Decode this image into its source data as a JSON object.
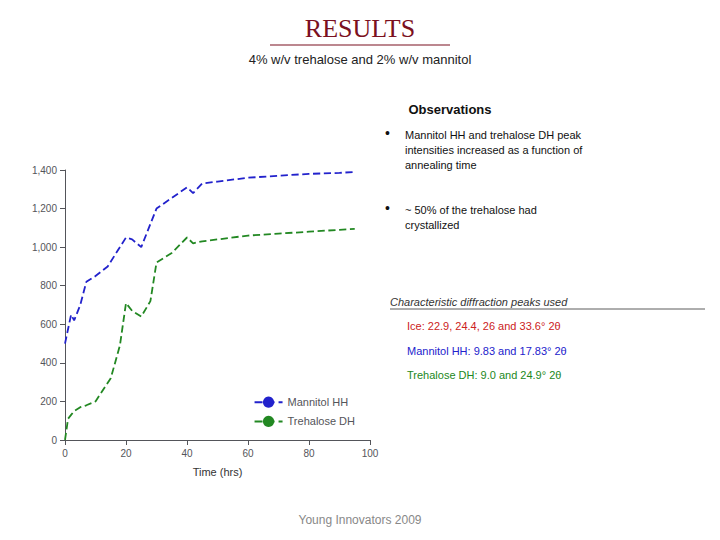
{
  "chart_data": {
    "type": "line",
    "title": "RESULTS",
    "subtitle": "4% w/v trehalose and 2% w/v mannitol",
    "xlabel": "Time (hrs)",
    "series": [
      {
        "name": "Mannitol HH",
        "color": "#2222cc",
        "line_style": "dashed",
        "x": [
          0,
          2,
          3,
          5,
          7,
          10,
          14,
          20,
          22,
          25,
          30,
          40,
          42,
          45,
          50,
          60,
          70,
          80,
          90,
          95
        ],
        "values": [
          500,
          650,
          620,
          700,
          820,
          850,
          900,
          1050,
          1040,
          1000,
          1200,
          1310,
          1280,
          1330,
          1340,
          1360,
          1370,
          1380,
          1385,
          1390
        ]
      },
      {
        "name": "Trehalose DH",
        "color": "#228822",
        "line_style": "dashed",
        "x": [
          0,
          1,
          2,
          3,
          5,
          7,
          10,
          15,
          18,
          20,
          22,
          25,
          28,
          30,
          35,
          40,
          42,
          45,
          50,
          60,
          70,
          80,
          90,
          95
        ],
        "values": [
          0,
          110,
          130,
          150,
          170,
          180,
          200,
          320,
          490,
          710,
          670,
          640,
          720,
          920,
          970,
          1050,
          1020,
          1030,
          1040,
          1060,
          1070,
          1080,
          1090,
          1095
        ]
      }
    ],
    "xlim": [
      0,
      100
    ],
    "xticks": [
      0,
      20,
      40,
      60,
      80,
      100
    ],
    "ylim": [
      0,
      1400
    ],
    "yticks": [
      0,
      200,
      400,
      600,
      800,
      1000,
      1200,
      1400
    ],
    "grid": false,
    "legend": "lower right",
    "annotations": [
      {
        "text": "Observations"
      },
      {
        "text": "Mannitol HH and trehalose DH peak\nintensities increased as a function of\nannealing time",
        "bullet": "•"
      },
      {
        "text": "~ 50% of the trehalose had\ncrystallized",
        "bullet": "•"
      },
      {
        "text": "Characteristic diffraction peaks used"
      },
      {
        "text": "Ice: 22.9, 24.4, 26 and 33.6° 2θ",
        "color": "#cc2222"
      },
      {
        "text": "Mannitol HH: 9.83 and 17.83° 2θ",
        "color": "#2222cc"
      },
      {
        "text": "Trehalose DH: 9.0 and 24.9° 2θ",
        "color": "#228822"
      },
      {
        "text": "Young Innovators 2009",
        "color": "#888888"
      }
    ]
  }
}
